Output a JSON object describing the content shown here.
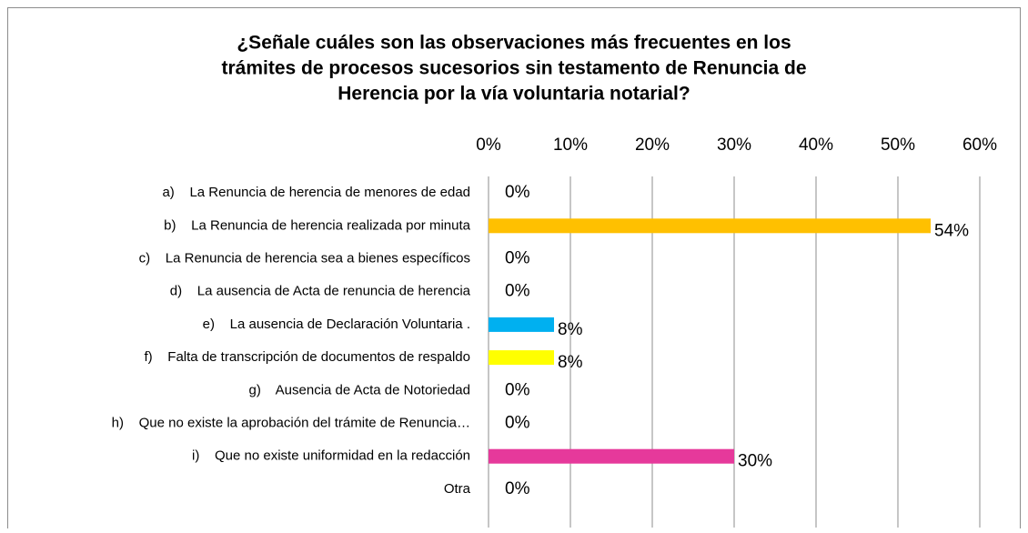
{
  "chart_data": {
    "type": "hbar",
    "title": [
      "¿Señale cuáles son las observaciones más frecuentes en los",
      "trámites de procesos sucesorios sin testamento de Renuncia de",
      "Herencia por la vía voluntaria notarial?"
    ],
    "categories": [
      "a)    La Renuncia de herencia de menores de edad",
      "b)    La Renuncia de herencia realizada por minuta",
      "c)    La Renuncia de herencia sea a bienes específicos",
      "d)    La ausencia de Acta de renuncia de herencia",
      "e)    La ausencia de Declaración Voluntaria .",
      "f)    Falta de transcripción de documentos de respaldo",
      "g)    Ausencia de Acta de Notoriedad",
      "h)    Que no existe la aprobación del trámite de Renuncia…",
      "i)    Que no existe uniformidad en la redacción",
      "Otra"
    ],
    "values": [
      0,
      54,
      0,
      0,
      8,
      8,
      0,
      0,
      30,
      0
    ],
    "value_labels": [
      "0%",
      "54%",
      "0%",
      "0%",
      "8%",
      "8%",
      "0%",
      "0%",
      "30%",
      "0%"
    ],
    "colors": [
      null,
      "#ffc000",
      null,
      null,
      "#00b0f0",
      "#ffff00",
      null,
      null,
      "#e6399b",
      null
    ],
    "xlim": [
      0,
      60
    ],
    "xticks": [
      {
        "value": 0,
        "label": "0%"
      },
      {
        "value": 10,
        "label": "10%"
      },
      {
        "value": 20,
        "label": "20%"
      },
      {
        "value": 30,
        "label": "30%"
      },
      {
        "value": 40,
        "label": "40%"
      },
      {
        "value": 50,
        "label": "50%"
      },
      {
        "value": 60,
        "label": "60%"
      }
    ],
    "grid": true
  }
}
